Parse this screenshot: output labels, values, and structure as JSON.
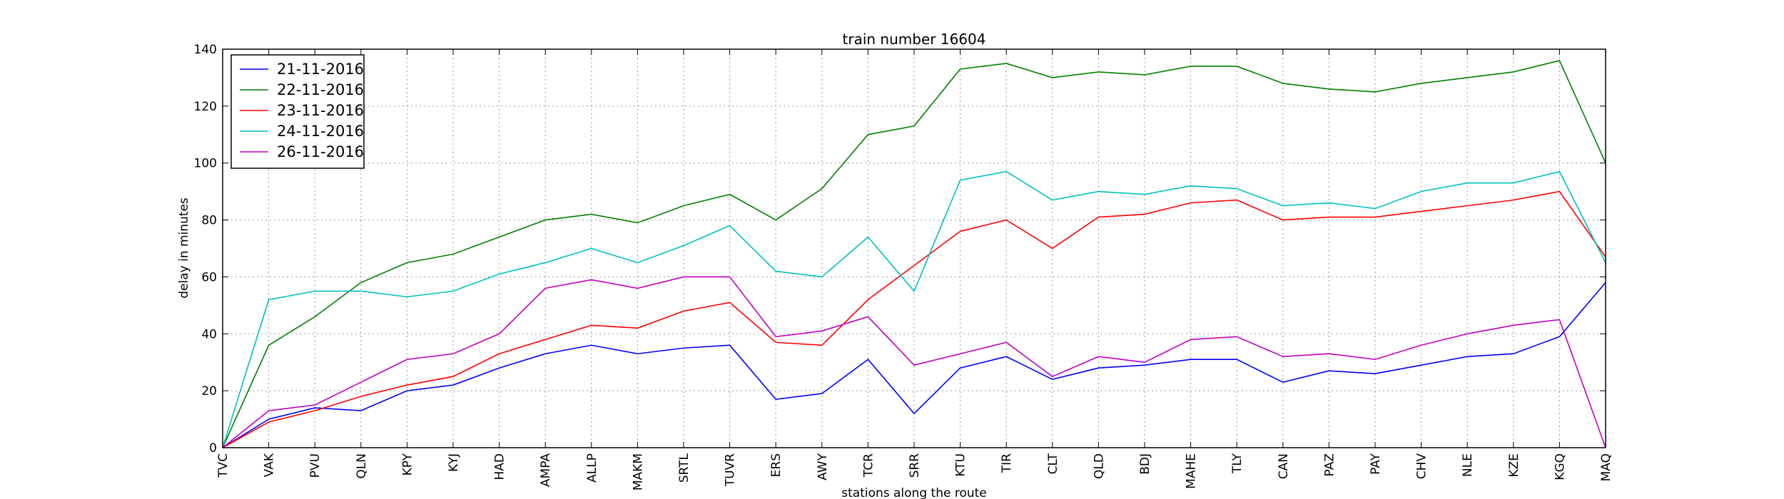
{
  "chart_data": {
    "type": "line",
    "title": "train number 16604",
    "x_label": "stations along the route",
    "y_label": "delay in minutes",
    "categories": [
      "TVC",
      "VAK",
      "PVU",
      "QLN",
      "KPY",
      "KYJ",
      "HAD",
      "AMPA",
      "ALLP",
      "MAKM",
      "SRTL",
      "TUVR",
      "ERS",
      "AWY",
      "TCR",
      "SRR",
      "KTU",
      "TIR",
      "CLT",
      "QLD",
      "BDJ",
      "MAHE",
      "TLY",
      "CAN",
      "PAZ",
      "PAY",
      "CHV",
      "NLE",
      "KZE",
      "KGQ",
      "MAQ"
    ],
    "series": [
      {
        "name": "21-11-2016",
        "color": "#0000ff",
        "values": [
          0,
          10,
          14,
          13,
          20,
          22,
          28,
          33,
          36,
          33,
          35,
          36,
          17,
          19,
          31,
          12,
          28,
          32,
          24,
          28,
          29,
          31,
          31,
          23,
          27,
          26,
          29,
          32,
          33,
          39,
          58
        ]
      },
      {
        "name": "22-11-2016",
        "color": "#008000",
        "values": [
          0,
          36,
          46,
          58,
          65,
          68,
          74,
          80,
          82,
          79,
          85,
          89,
          80,
          91,
          110,
          113,
          133,
          135,
          130,
          132,
          131,
          134,
          134,
          128,
          126,
          125,
          128,
          130,
          132,
          136,
          100
        ]
      },
      {
        "name": "23-11-2016",
        "color": "#ff0000",
        "values": [
          0,
          9,
          13,
          18,
          22,
          25,
          33,
          38,
          43,
          42,
          48,
          51,
          37,
          36,
          52,
          64,
          76,
          80,
          70,
          81,
          82,
          86,
          87,
          80,
          81,
          81,
          83,
          85,
          87,
          90,
          67
        ]
      },
      {
        "name": "24-11-2016",
        "color": "#00bfbf",
        "values": [
          0,
          52,
          55,
          55,
          53,
          55,
          61,
          65,
          70,
          65,
          71,
          78,
          62,
          60,
          74,
          55,
          94,
          97,
          87,
          90,
          89,
          92,
          91,
          85,
          86,
          84,
          90,
          93,
          93,
          97,
          65
        ]
      },
      {
        "name": "26-11-2016",
        "color": "#bf00bf",
        "values": [
          0,
          13,
          15,
          23,
          31,
          33,
          40,
          56,
          59,
          56,
          60,
          60,
          39,
          41,
          46,
          29,
          33,
          37,
          25,
          32,
          30,
          38,
          39,
          32,
          33,
          31,
          36,
          40,
          43,
          45,
          0
        ]
      }
    ],
    "ylim": [
      0,
      140
    ],
    "yticks": [
      0,
      20,
      40,
      60,
      80,
      100,
      120,
      140
    ],
    "grid": true,
    "legend": "upper left"
  }
}
